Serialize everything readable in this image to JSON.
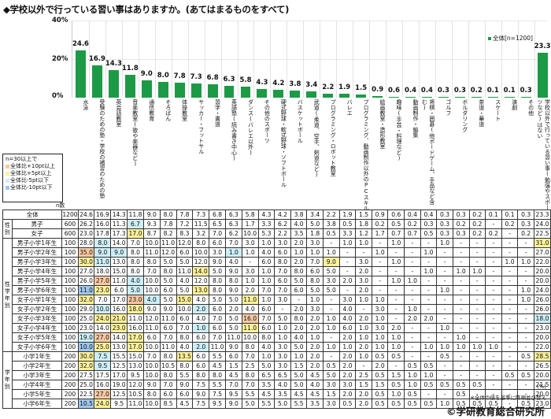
{
  "title": "◆学校以外で行っている習い事はありますか。(あてはまるものをすべて)",
  "legend_label": "全体[n=1200]",
  "n_header": "n数",
  "unit": "(%)",
  "note": "※全体の値を基準に降順並び替え",
  "credit": "©学研教育総合研究所",
  "key": {
    "title": "n=30以上で",
    "items": [
      {
        "label": "全体比+10pt以上",
        "color": "#f8c9a3"
      },
      {
        "label": "全体比+5pt以上",
        "color": "#fdf19a"
      },
      {
        "label": "全体比-5pt以下",
        "color": "#cdeef7"
      },
      {
        "label": "全体比-10pt以下",
        "color": "#9fc7ee"
      }
    ]
  },
  "colors": {
    "bar": "#1d9a46"
  },
  "chart_data": {
    "type": "bar",
    "title": "◆学校以外で行っている習い事はありますか。(あてはまるものをすべて)",
    "xlabel": "",
    "ylabel": "%",
    "ylim": [
      0,
      40
    ],
    "yticks": [
      "0%",
      "20%",
      "40%"
    ],
    "grid": true,
    "legend": [
      "全体[n=1200]"
    ],
    "legend_position": "top-right",
    "categories": [
      "水泳",
      "受験のための塾・学校の補習のための塾",
      "英会話教室",
      "音楽教室(歌や楽器など)",
      "通信教育",
      "そろばん",
      "体操教室",
      "サッカー・フットサル",
      "習字・書道",
      "英語塾(読み書き中心)",
      "ダンス(バレエ以外)",
      "その他のスポーツ",
      "硬式野球・軟式野球・ソフトボール",
      "バスケットボール",
      "武道(柔道、空手、剣道など)",
      "プログラミング・ロボット教室",
      "バレエ",
      "プログラミング、動画制作以外のPCスキル",
      "絵画教室・造形教室",
      "趣味(手芸・料理など)",
      "動画制作・編集",
      "将棋・囲碁(他ボードゲーム、手品など含む)",
      "ゴルフ",
      "ボルダリング",
      "茶道・華道",
      "スケート",
      "演劇",
      "その他",
      "学校以外で行っている習い事(勉強やスポーツなど)はない"
    ],
    "values": [
      24.6,
      16.9,
      14.3,
      11.8,
      9.0,
      8.0,
      7.8,
      7.3,
      6.8,
      6.3,
      5.8,
      4.3,
      4.2,
      3.8,
      3.4,
      2.2,
      1.9,
      1.5,
      0.9,
      0.6,
      0.4,
      0.4,
      0.3,
      0.3,
      0.2,
      0.1,
      0.1,
      0.3,
      23.3
    ],
    "table": {
      "groups": [
        {
          "label": "",
          "rows": [
            0
          ]
        },
        {
          "label": "性別",
          "rows": [
            1,
            2
          ]
        },
        {
          "label": "性学年別",
          "rows": [
            3,
            4,
            5,
            6,
            7,
            8,
            9,
            10,
            11,
            12,
            13,
            14
          ]
        },
        {
          "label": "学年別",
          "rows": [
            15,
            16,
            17,
            18,
            19,
            20
          ]
        }
      ],
      "rows": [
        {
          "label": "全体",
          "n": "1200",
          "values": [
            "24.6",
            "16.9",
            "14.3",
            "11.8",
            "9.0",
            "8.0",
            "7.8",
            "7.3",
            "6.8",
            "6.3",
            "5.8",
            "4.3",
            "4.2",
            "3.8",
            "3.4",
            "2.2",
            "1.9",
            "1.5",
            "0.9",
            "0.6",
            "0.4",
            "0.4",
            "0.3",
            "0.3",
            "0.2",
            "0.1",
            "0.1",
            "0.3",
            "23.3"
          ],
          "hl": {}
        },
        {
          "label": "男子",
          "n": "600",
          "values": [
            "26.2",
            "16.0",
            "11.3",
            "6.7",
            "9.3",
            "7.8",
            "7.2",
            "11.5",
            "6.5",
            "6.3",
            "1.7",
            "3.3",
            "6.2",
            "4.0",
            "5.0",
            "3.8",
            "0.5",
            "1.8",
            "0.2",
            "0.5",
            "0.2",
            "0.3",
            "0.3",
            "0.2",
            "0.2",
            "-",
            "0.2",
            "0.3",
            "24.0"
          ],
          "hl": {
            "3": "m5"
          }
        },
        {
          "label": "女子",
          "n": "600",
          "values": [
            "23.0",
            "17.8",
            "17.3",
            "17.0",
            "8.7",
            "8.2",
            "8.3",
            "3.2",
            "7.0",
            "6.2",
            "10.0",
            "5.3",
            "2.2",
            "3.5",
            "1.8",
            "0.5",
            "3.3",
            "1.2",
            "1.7",
            "0.7",
            "0.7",
            "0.5",
            "0.3",
            "0.3",
            "0.2",
            "0.2",
            "-",
            "0.2",
            "22.5"
          ],
          "hl": {
            "3": "o5"
          }
        },
        {
          "label": "男子小学1年生",
          "n": "100",
          "values": [
            "28.0",
            "8.0",
            "14.0",
            "7.0",
            "10.0",
            "11.0",
            "12.0",
            "8.0",
            "6.0",
            "7.0",
            "3.0",
            "1.0",
            "3.0",
            "2.0",
            "3.0",
            "-",
            "1.0",
            "1.0",
            "-",
            "1.0",
            "-",
            "-",
            "1.0",
            "-",
            "-",
            "-",
            "-",
            "-",
            "31.0"
          ],
          "hl": {
            "1": "m5",
            "28": "o5"
          }
        },
        {
          "label": "男子小学2年生",
          "n": "100",
          "values": [
            "35.0",
            "9.0",
            "9.0",
            "8.0",
            "11.0",
            "12.0",
            "6.0",
            "10.0",
            "3.0",
            "1.0",
            "1.0",
            "4.0",
            "6.0",
            "1.0",
            "1.0",
            "1.0",
            "-",
            "-",
            "1.0",
            "-",
            "-",
            "1.0",
            "-",
            "-",
            "-",
            "-",
            "-",
            "-",
            "27.0"
          ],
          "hl": {
            "0": "o10",
            "1": "m5",
            "2": "m5",
            "9": "m5"
          }
        },
        {
          "label": "男子小学3年生",
          "n": "100",
          "values": [
            "30.0",
            "11.0",
            "13.0",
            "8.0",
            "8.0",
            "5.0",
            "5.0",
            "12.0",
            "9.0",
            "4.0",
            "-",
            "6.0",
            "8.0",
            "2.0",
            "7.0",
            "9.0",
            "-",
            "3.0",
            "-",
            "1.0",
            "-",
            "-",
            "-",
            "-",
            "-",
            "-",
            "1.0",
            "1.0",
            "22.0"
          ],
          "hl": {
            "0": "o5",
            "1": "m5",
            "15": "o5"
          }
        },
        {
          "label": "男子小学4年生",
          "n": "100",
          "values": [
            "27.0",
            "18.0",
            "15.0",
            "8.0",
            "7.0",
            "8.0",
            "11.0",
            "14.0",
            "5.0",
            "9.0",
            "3.0",
            "1.0",
            "7.0",
            "8.0",
            "6.0",
            "5.0",
            "-",
            "2.0",
            "-",
            "-",
            "-",
            "1.0",
            "-",
            "1.0",
            "1.0",
            "-",
            "-",
            "-",
            "20.0"
          ],
          "hl": {
            "7": "o5"
          }
        },
        {
          "label": "男子小学5年生",
          "n": "100",
          "values": [
            "26.0",
            "27.0",
            "11.0",
            "4.0",
            "10.0",
            "5.0",
            "4.0",
            "12.0",
            "8.0",
            "8.0",
            "1.0",
            "1.0",
            "6.0",
            "5.0",
            "8.0",
            "3.0",
            "2.0",
            "3.0",
            "-",
            "1.0",
            "1.0",
            "-",
            "-",
            "-",
            "-",
            "-",
            "-",
            "-",
            "20.0"
          ],
          "hl": {
            "1": "o10",
            "3": "m5"
          }
        },
        {
          "label": "男子小学6年生",
          "n": "100",
          "values": [
            "11.0",
            "23.0",
            "6.0",
            "5.0",
            "10.0",
            "6.0",
            "5.0",
            "13.0",
            "8.0",
            "9.0",
            "2.0",
            "7.0",
            "7.0",
            "6.0",
            "5.0",
            "5.0",
            "-",
            "2.0",
            "-",
            "-",
            "-",
            "-",
            "1.0",
            "-",
            "-",
            "-",
            "-",
            "1.0",
            "24.0"
          ],
          "hl": {
            "0": "m10",
            "1": "o5",
            "3": "m5",
            "7": "o5"
          }
        },
        {
          "label": "女子小学1年生",
          "n": "100",
          "values": [
            "32.0",
            "7.0",
            "17.0",
            "23.0",
            "4.0",
            "5.0",
            "15.0",
            "4.0",
            "5.0",
            "5.0",
            "11.0",
            "1.0",
            "3.0",
            "-",
            "1.0",
            "-",
            "3.0",
            "1.0",
            "1.0",
            "-",
            "-",
            "-",
            "-",
            "-",
            "-",
            "-",
            "-",
            "1.0",
            "26.0"
          ],
          "hl": {
            "0": "o5",
            "3": "o10",
            "4": "m5",
            "6": "o5",
            "10": "o5"
          }
        },
        {
          "label": "女子小学2年生",
          "n": "100",
          "values": [
            "29.0",
            "10.0",
            "16.0",
            "18.0",
            "9.0",
            "9.0",
            "10.0",
            "2.0",
            "6.0",
            "2.0",
            "4.0",
            "6.0",
            "-",
            "2.0",
            "3.0",
            "-",
            "4.0",
            "-",
            "3.0",
            "-",
            "1.0",
            "-",
            "-",
            "-",
            "-",
            "-",
            "-",
            "-",
            "26.0"
          ],
          "hl": {
            "1": "m5",
            "3": "o5",
            "7": "m5"
          }
        },
        {
          "label": "女子小学3年生",
          "n": "100",
          "values": [
            "25.0",
            "24.0",
            "21.0",
            "11.0",
            "12.0",
            "11.0",
            "6.0",
            "4.0",
            "7.0",
            "5.0",
            "16.0",
            "7.0",
            "5.0",
            "8.0",
            "2.0",
            "1.0",
            "4.0",
            "2.0",
            "1.0",
            "-",
            "2.0",
            "2.0",
            "-",
            "-",
            "-",
            "-",
            "-",
            "-",
            "18.0"
          ],
          "hl": {
            "1": "o5",
            "2": "o5",
            "10": "o10",
            "28": "m5"
          }
        },
        {
          "label": "女子小学4年生",
          "n": "100",
          "values": [
            "23.0",
            "14.0",
            "23.0",
            "16.0",
            "11.0",
            "6.0",
            "7.0",
            "1.0",
            "6.0",
            "5.0",
            "11.0",
            "6.0",
            "1.0",
            "2.0",
            "2.0",
            "1.0",
            "6.0",
            "1.0",
            "3.0",
            "2.0",
            "-",
            "-",
            "1.0",
            "-",
            "-",
            "-",
            "-",
            "-",
            "23.0"
          ],
          "hl": {
            "2": "o5",
            "7": "m5",
            "10": "o5"
          }
        },
        {
          "label": "女子小学5年生",
          "n": "100",
          "values": [
            "19.0",
            "27.0",
            "14.0",
            "17.0",
            "6.0",
            "7.0",
            "8.0",
            "6.0",
            "7.0",
            "11.0",
            "10.0",
            "8.0",
            "1.0",
            "4.0",
            "1.0",
            "-",
            "2.0",
            "1.0",
            "1.0",
            "1.0",
            "-",
            "-",
            "-",
            "1.0",
            "-",
            "-",
            "-",
            "-",
            "20.0"
          ],
          "hl": {
            "0": "m5",
            "1": "o10",
            "3": "o5"
          }
        },
        {
          "label": "女子小学6年生",
          "n": "100",
          "values": [
            "10.0",
            "25.0",
            "13.0",
            "17.0",
            "10.0",
            "11.0",
            "4.0",
            "2.0",
            "11.0",
            "9.0",
            "8.0",
            "4.0",
            "3.0",
            "5.0",
            "2.0",
            "1.0",
            "1.0",
            "2.0",
            "1.0",
            "1.0",
            "-",
            "1.0",
            "1.0",
            "1.0",
            "1.0",
            "1.0",
            "-",
            "-",
            "22.0"
          ],
          "hl": {
            "0": "m10",
            "1": "o5",
            "3": "o5",
            "7": "m5"
          }
        },
        {
          "label": "小学1年生",
          "n": "200",
          "values": [
            "30.0",
            "7.5",
            "15.5",
            "15.0",
            "7.0",
            "8.0",
            "13.5",
            "6.0",
            "5.5",
            "6.0",
            "7.0",
            "1.0",
            "3.0",
            "1.0",
            "2.0",
            "-",
            "2.0",
            "1.0",
            "0.5",
            "0.5",
            "-",
            "-",
            "0.5",
            "-",
            "-",
            "-",
            "-",
            "0.5",
            "28.5"
          ],
          "hl": {
            "0": "o5",
            "1": "m5",
            "6": "o5",
            "28": "o5"
          }
        },
        {
          "label": "小学2年生",
          "n": "200",
          "values": [
            "32.0",
            "9.5",
            "12.5",
            "13.0",
            "10.0",
            "10.5",
            "8.0",
            "6.0",
            "4.5",
            "1.5",
            "2.5",
            "5.0",
            "3.0",
            "1.5",
            "2.0",
            "0.5",
            "2.0",
            "-",
            "2.0",
            "-",
            "0.5",
            "0.5",
            "-",
            "-",
            "-",
            "-",
            "-",
            "-",
            "26.5"
          ],
          "hl": {
            "0": "o5",
            "1": "m5"
          }
        },
        {
          "label": "小学3年生",
          "n": "200",
          "values": [
            "27.5",
            "17.5",
            "17.0",
            "9.5",
            "10.0",
            "8.0",
            "5.5",
            "8.0",
            "8.0",
            "4.5",
            "8.0",
            "6.5",
            "6.5",
            "5.0",
            "4.5",
            "5.0",
            "2.0",
            "2.5",
            "0.5",
            "1.5",
            "1.0",
            "1.0",
            "-",
            "-",
            "-",
            "-",
            "0.5",
            "0.5",
            "20.0"
          ],
          "hl": {}
        },
        {
          "label": "小学4年生",
          "n": "200",
          "values": [
            "25.0",
            "16.0",
            "19.0",
            "12.0",
            "9.0",
            "7.0",
            "9.0",
            "7.5",
            "5.5",
            "7.0",
            "7.0",
            "3.5",
            "4.0",
            "5.0",
            "4.0",
            "3.0",
            "3.0",
            "1.5",
            "1.5",
            "0.5",
            "1.0",
            "0.5",
            "0.5",
            "0.5",
            "0.5",
            "-",
            "-",
            "-",
            "21.5"
          ],
          "hl": {}
        },
        {
          "label": "小学5年生",
          "n": "200",
          "values": [
            "22.5",
            "27.0",
            "12.5",
            "10.5",
            "8.0",
            "6.0",
            "6.0",
            "9.0",
            "7.5",
            "9.5",
            "5.5",
            "4.5",
            "3.5",
            "4.5",
            "4.5",
            "1.5",
            "2.0",
            "2.0",
            "0.5",
            "1.0",
            "0.5",
            "-",
            "-",
            "0.5",
            "-",
            "-",
            "-",
            "-",
            "20.0"
          ],
          "hl": {
            "1": "o10"
          }
        },
        {
          "label": "小学6年生",
          "n": "200",
          "values": [
            "10.5",
            "24.0",
            "9.5",
            "11.0",
            "10.0",
            "8.5",
            "4.5",
            "7.5",
            "9.5",
            "9.0",
            "5.0",
            "5.5",
            "5.0",
            "5.5",
            "3.5",
            "3.0",
            "0.5",
            "2.0",
            "0.5",
            "0.5",
            "0.5",
            "0.5",
            "1.0",
            "0.5",
            "0.5",
            "0.5",
            "-",
            "0.5",
            "23.0"
          ],
          "hl": {
            "0": "m10",
            "1": "o5"
          }
        }
      ]
    }
  }
}
